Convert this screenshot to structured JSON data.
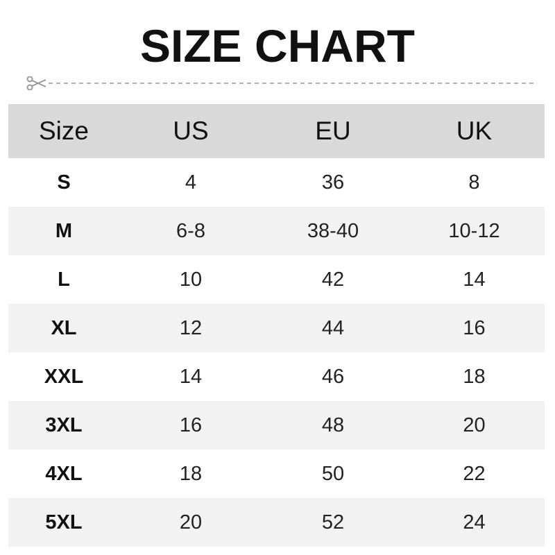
{
  "title": "SIZE CHART",
  "icons": {
    "scissors": "scissors-icon"
  },
  "colors": {
    "header_bg": "#d9d9d9",
    "alt_row_bg": "#f2f2f2",
    "cutline": "#999999"
  },
  "chart_data": {
    "type": "table",
    "title": "SIZE CHART",
    "columns": [
      "Size",
      "US",
      "EU",
      "UK"
    ],
    "rows": [
      [
        "S",
        "4",
        "36",
        "8"
      ],
      [
        "M",
        "6-8",
        "38-40",
        "10-12"
      ],
      [
        "L",
        "10",
        "42",
        "14"
      ],
      [
        "XL",
        "12",
        "44",
        "16"
      ],
      [
        "XXL",
        "14",
        "46",
        "18"
      ],
      [
        "3XL",
        "16",
        "48",
        "20"
      ],
      [
        "4XL",
        "18",
        "50",
        "22"
      ],
      [
        "5XL",
        "20",
        "52",
        "24"
      ]
    ]
  }
}
